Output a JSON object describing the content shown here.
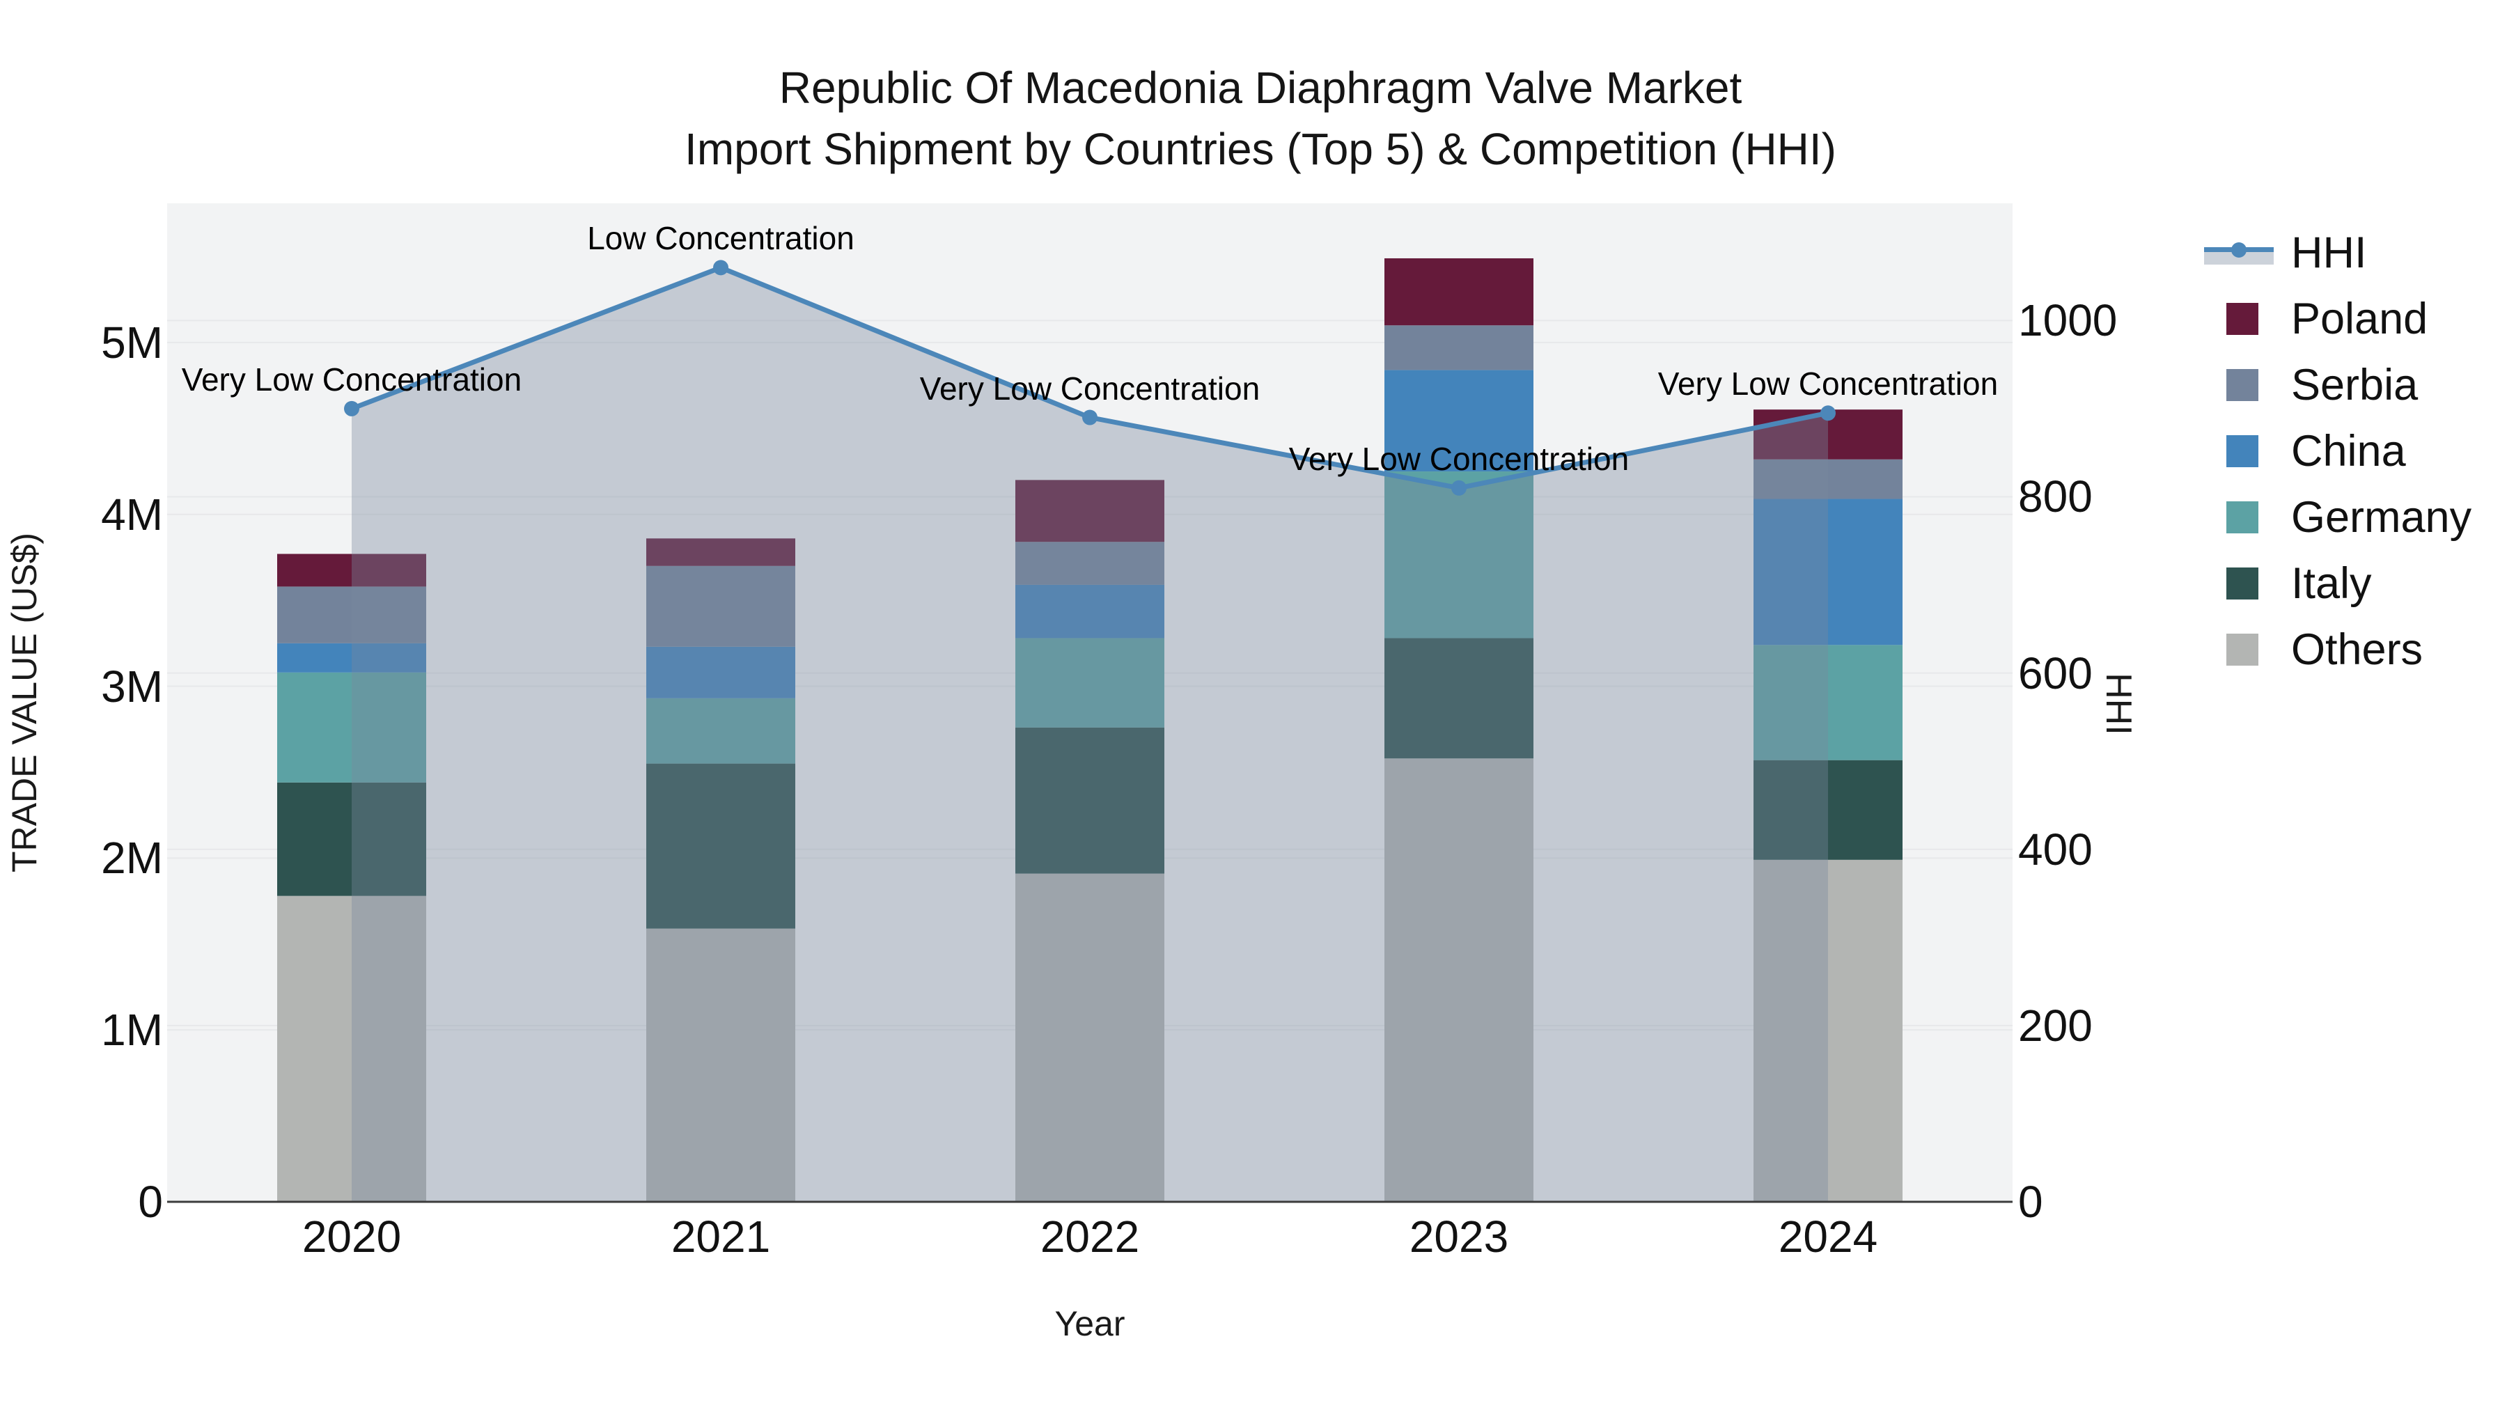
{
  "title": {
    "line1": "Republic Of Macedonia Diaphragm Valve Market",
    "line2": "Import Shipment by Countries (Top 5) & Competition (HHI)"
  },
  "axes": {
    "left": {
      "title": "TRADE VALUE (US$)",
      "tick_labels": [
        "0",
        "1M",
        "2M",
        "3M",
        "4M",
        "5M"
      ],
      "tick_values": [
        0,
        1000000,
        2000000,
        3000000,
        4000000,
        5000000
      ]
    },
    "right": {
      "title": "HHI",
      "tick_labels": [
        "0",
        "200",
        "400",
        "600",
        "800",
        "1000"
      ],
      "tick_values": [
        0,
        200,
        400,
        600,
        800,
        1000
      ]
    },
    "x": {
      "title": "Year",
      "tick_labels": [
        "2020",
        "2021",
        "2022",
        "2023",
        "2024"
      ]
    }
  },
  "legend": {
    "items": [
      {
        "label": "HHI",
        "type": "line",
        "color": "#4C87B9",
        "band_color": "#CCD2DA"
      },
      {
        "label": "Poland",
        "type": "swatch",
        "color": "#651A3A"
      },
      {
        "label": "Serbia",
        "type": "swatch",
        "color": "#73839B"
      },
      {
        "label": "China",
        "type": "swatch",
        "color": "#4384BB"
      },
      {
        "label": "Germany",
        "type": "swatch",
        "color": "#5CA2A4"
      },
      {
        "label": "Italy",
        "type": "swatch",
        "color": "#2E5350"
      },
      {
        "label": "Others",
        "type": "swatch",
        "color": "#B3B5B3"
      }
    ]
  },
  "colors": {
    "plot_bg": "#F2F3F4",
    "grid": "#E7E8EA",
    "axis_line": "#3C3C3C",
    "hhi_line": "#4C87B9",
    "area_fill": "rgba(121,136,158,0.38)",
    "text": "#111111"
  },
  "chart_data": {
    "type": "bar+line",
    "title": "Republic Of Macedonia Diaphragm Valve Market — Import Shipment by Countries (Top 5) & Competition (HHI)",
    "categories": [
      "2020",
      "2021",
      "2022",
      "2023",
      "2024"
    ],
    "xlabel": "Year",
    "ylabel": "TRADE VALUE (US$)",
    "ylabel_right": "HHI",
    "ylim_left": [
      0,
      5810000
    ],
    "ylim_right": [
      0,
      1133
    ],
    "grid": true,
    "legend_position": "right",
    "stack_note": "series listed bottom-to-top of stack; values in US$",
    "series": [
      {
        "name": "Others",
        "color": "#B3B5B3",
        "values": [
          1780000,
          1590000,
          1910000,
          2580000,
          1990000
        ]
      },
      {
        "name": "Italy",
        "color": "#2E5350",
        "values": [
          660000,
          960000,
          850000,
          700000,
          580000
        ]
      },
      {
        "name": "Germany",
        "color": "#5CA2A4",
        "values": [
          640000,
          380000,
          520000,
          970000,
          670000
        ]
      },
      {
        "name": "China",
        "color": "#4384BB",
        "values": [
          170000,
          300000,
          310000,
          590000,
          850000
        ]
      },
      {
        "name": "Serbia",
        "color": "#73839B",
        "values": [
          330000,
          470000,
          250000,
          260000,
          230000
        ]
      },
      {
        "name": "Poland",
        "color": "#651A3A",
        "values": [
          190000,
          160000,
          360000,
          390000,
          290000
        ]
      }
    ],
    "totals": [
      3770000,
      3860000,
      4200000,
      5490000,
      4610000
    ],
    "line": {
      "name": "HHI",
      "color": "#4C87B9",
      "axis": "right",
      "values": [
        900,
        1060,
        890,
        810,
        895
      ],
      "point_labels": [
        "Very Low Concentration",
        "Low Concentration",
        "Very Low Concentration",
        "Very Low Concentration",
        "Very Low Concentration"
      ],
      "area_fill": "rgba(121,136,158,0.38)"
    }
  }
}
